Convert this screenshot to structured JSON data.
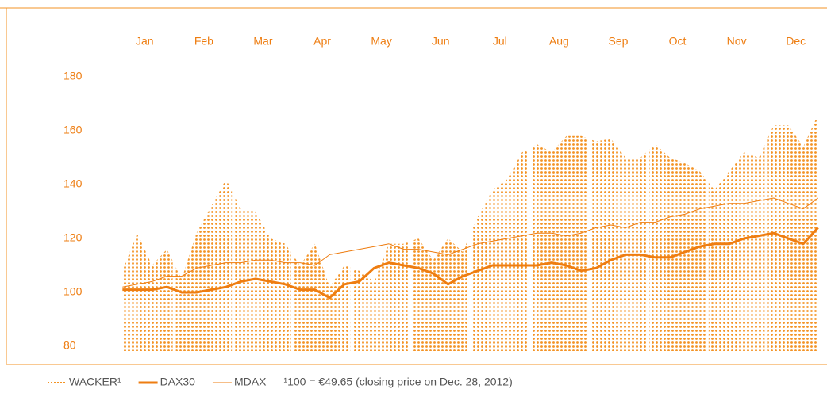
{
  "chart_data": {
    "type": "line",
    "categories": [
      null,
      "Jan",
      null,
      null,
      null,
      "Feb",
      null,
      null,
      null,
      "Mar",
      null,
      null,
      null,
      "Apr",
      null,
      null,
      null,
      "May",
      null,
      null,
      null,
      "Jun",
      null,
      null,
      null,
      "Jul",
      null,
      null,
      null,
      "Aug",
      null,
      null,
      null,
      "Sep",
      null,
      null,
      null,
      "Oct",
      null,
      null,
      null,
      "Nov",
      null,
      null,
      null,
      "Dec",
      null,
      null
    ],
    "series": [
      {
        "name": "WACKER¹",
        "style": "dotted-area",
        "color": "#f39325",
        "values": [
          108,
          122,
          110,
          116,
          105,
          122,
          132,
          142,
          131,
          130,
          120,
          118,
          110,
          118,
          102,
          110,
          108,
          104,
          118,
          118,
          120,
          112,
          120,
          115,
          128,
          138,
          142,
          152,
          155,
          152,
          158,
          158,
          156,
          157,
          150,
          150,
          155,
          150,
          148,
          145,
          138,
          145,
          152,
          150,
          162,
          162,
          154,
          166
        ]
      },
      {
        "name": "DAX30",
        "style": "thick",
        "color": "#ee7d11",
        "values": [
          101,
          101,
          101,
          102,
          100,
          100,
          101,
          102,
          104,
          105,
          104,
          103,
          101,
          101,
          98,
          103,
          104,
          109,
          111,
          110,
          109,
          107,
          103,
          106,
          108,
          110,
          110,
          110,
          110,
          111,
          110,
          108,
          109,
          112,
          114,
          114,
          113,
          113,
          115,
          117,
          118,
          118,
          120,
          121,
          122,
          120,
          118,
          124
        ]
      },
      {
        "name": "MDAX",
        "style": "thin",
        "color": "#ee7d11",
        "values": [
          102,
          103,
          104,
          106,
          106,
          109,
          110,
          111,
          111,
          112,
          112,
          111,
          111,
          110,
          114,
          115,
          116,
          117,
          118,
          116,
          116,
          115,
          114,
          116,
          118,
          119,
          120,
          121,
          122,
          122,
          121,
          122,
          124,
          125,
          124,
          126,
          126,
          128,
          129,
          131,
          132,
          133,
          133,
          134,
          135,
          133,
          131,
          135
        ]
      }
    ],
    "note": "¹100 = €49.65 (closing price on Dec. 28, 2012)",
    "ylim": [
      80,
      180
    ],
    "yticks": [
      80,
      100,
      120,
      140,
      160,
      180
    ]
  }
}
